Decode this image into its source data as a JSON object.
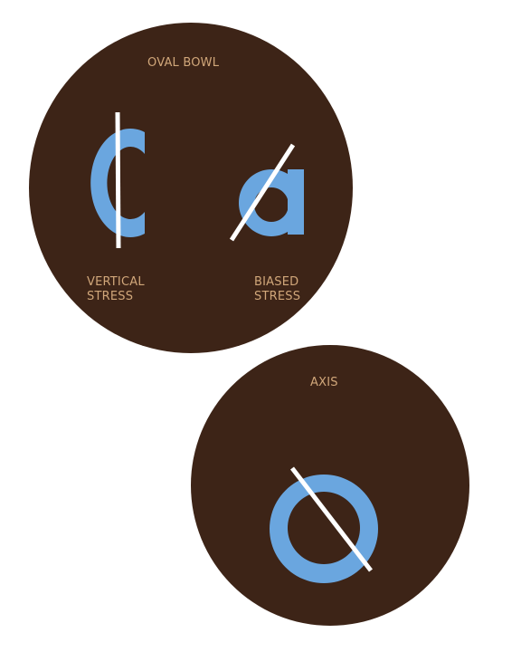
{
  "colors": {
    "circle": "#3d2417",
    "label": "#d1a77a",
    "letter": "#6aa6df",
    "axis_line": "#ffffff",
    "background": "#ffffff"
  },
  "labels": {
    "oval_bowl": "OVAL BOWL",
    "vertical_stress": [
      "VERTICAL",
      "STRESS"
    ],
    "biased_stress": [
      "BIASED",
      "STRESS"
    ],
    "axis": "AXIS"
  },
  "letters": {
    "vertical_stress": "c",
    "biased_stress": "a",
    "axis": "o"
  }
}
